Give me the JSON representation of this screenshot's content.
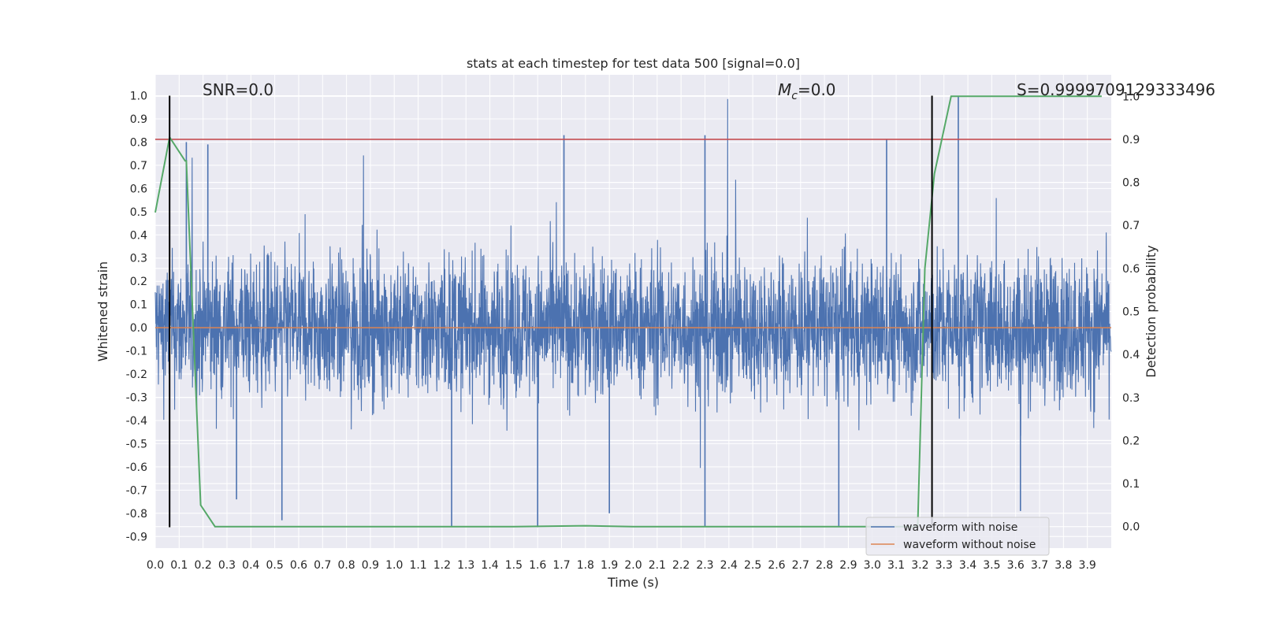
{
  "chart_data": {
    "type": "line",
    "title": "stats at each timestep for test data 500 [signal=0.0]",
    "xlabel": "Time (s)",
    "ylabel": "Whitened strain",
    "y2label": "Detection probability",
    "xlim": [
      0.0,
      4.0
    ],
    "ylim": [
      -0.95,
      1.09
    ],
    "y2lim": [
      -0.05,
      1.05
    ],
    "grid": true,
    "legend_position": "lower-right",
    "x_ticks": [
      0.0,
      0.1,
      0.2,
      0.3,
      0.4,
      0.5,
      0.6,
      0.7,
      0.8,
      0.9,
      1.0,
      1.1,
      1.2,
      1.3,
      1.4,
      1.5,
      1.6,
      1.7,
      1.8,
      1.9,
      2.0,
      2.1,
      2.2,
      2.3,
      2.4,
      2.5,
      2.6,
      2.7,
      2.8,
      2.9,
      3.0,
      3.1,
      3.2,
      3.3,
      3.4,
      3.5,
      3.6,
      3.7,
      3.8,
      3.9
    ],
    "x_tick_labels": [
      "0.0",
      "0.1",
      "0.2",
      "0.3",
      "0.4",
      "0.5",
      "0.6",
      "0.7",
      "0.8",
      "0.9",
      "1.0",
      "1.1",
      "1.2",
      "1.3",
      "1.4",
      "1.5",
      "1.6",
      "1.7",
      "1.8",
      "1.9",
      "2.0",
      "2.1",
      "2.2",
      "2.3",
      "2.4",
      "2.5",
      "2.6",
      "2.7",
      "2.8",
      "2.9",
      "3.0",
      "3.1",
      "3.2",
      "3.3",
      "3.4",
      "3.5",
      "3.6",
      "3.7",
      "3.8",
      "3.9"
    ],
    "y_ticks": [
      1.0,
      0.9,
      0.8,
      0.7,
      0.6,
      0.5,
      0.4,
      0.3,
      0.2,
      0.1,
      0.0,
      -0.1,
      -0.2,
      -0.3,
      -0.4,
      -0.5,
      -0.6,
      -0.7,
      -0.8,
      -0.9
    ],
    "y_tick_labels": [
      "1.0",
      "0.9",
      "0.8",
      "0.7",
      "0.6",
      "0.5",
      "0.4",
      "0.3",
      "0.2",
      "0.1",
      "0.0",
      "-0.1",
      "-0.2",
      "-0.3",
      "-0.4",
      "-0.5",
      "-0.6",
      "-0.7",
      "-0.8",
      "-0.9"
    ],
    "y2_ticks": [
      1.0,
      0.9,
      0.8,
      0.7,
      0.6,
      0.5,
      0.4,
      0.3,
      0.2,
      0.1,
      0.0
    ],
    "y2_tick_labels": [
      "1.0",
      "0.9",
      "0.8",
      "0.7",
      "0.6",
      "0.5",
      "0.4",
      "0.3",
      "0.2",
      "0.1",
      "0.0"
    ],
    "annotations": {
      "snr": "SNR=0.0",
      "mc_base": "M",
      "mc_sub": "c",
      "mc_rest": "=0.0",
      "s": "S=0.9999709129333496"
    },
    "series": [
      {
        "name": "waveform with noise",
        "color": "#4c72b0",
        "kind": "noise",
        "x_range": [
          0.0,
          4.0
        ],
        "amplitude_range": [
          -0.86,
          1.0
        ],
        "peaks": [
          {
            "x": 1.71,
            "y": 0.83
          },
          {
            "x": 2.3,
            "y": 0.83
          },
          {
            "x": 3.06,
            "y": 0.81
          },
          {
            "x": 3.36,
            "y": 1.0
          },
          {
            "x": 0.13,
            "y": 0.8
          },
          {
            "x": 0.22,
            "y": 0.79
          },
          {
            "x": 1.24,
            "y": -0.86
          },
          {
            "x": 1.6,
            "y": -0.86
          },
          {
            "x": 2.3,
            "y": -0.86
          },
          {
            "x": 2.86,
            "y": -0.86
          },
          {
            "x": 3.62,
            "y": -0.79
          },
          {
            "x": 0.34,
            "y": -0.74
          },
          {
            "x": 1.9,
            "y": -0.8
          },
          {
            "x": 0.53,
            "y": -0.83
          }
        ]
      },
      {
        "name": "waveform without noise",
        "color": "#dd8452",
        "x": [
          0.0,
          4.0
        ],
        "y": [
          0.0,
          0.0
        ]
      }
    ],
    "detection_probability": {
      "color": "#55a868",
      "x": [
        0.0,
        0.06,
        0.125,
        0.13,
        0.19,
        0.25,
        0.5,
        1.0,
        1.5,
        1.8,
        2.0,
        2.5,
        3.0,
        3.1,
        3.19,
        3.22,
        3.26,
        3.33,
        3.5,
        3.75,
        3.96
      ],
      "y": [
        0.73,
        0.905,
        0.85,
        0.85,
        0.05,
        0.0,
        0.0,
        0.0,
        0.0,
        0.002,
        0.0,
        0.0,
        0.0,
        0.0,
        0.0,
        0.6,
        0.82,
        1.0,
        1.0,
        1.0,
        1.0
      ]
    },
    "threshold": {
      "color": "#c44e52",
      "y2": 0.9
    },
    "event_lines": {
      "color": "#000000",
      "x": [
        0.06,
        3.25
      ],
      "y_range": [
        -0.86,
        1.0
      ]
    }
  }
}
